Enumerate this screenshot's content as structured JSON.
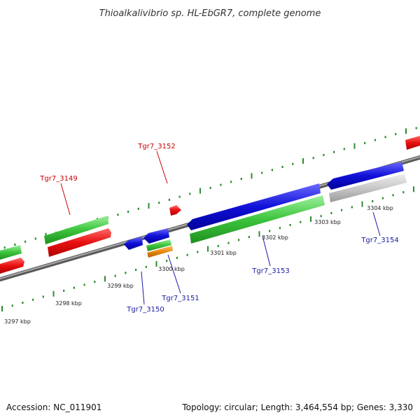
{
  "title": "Thioalkalivibrio sp. HL-EbGR7, complete genome",
  "footer": {
    "accession": "Accession: NC_011901",
    "summary": "Topology: circular; Length: 3,464,554 bp; Genes: 3,330"
  },
  "colors": {
    "backbone": "#7a7a7a",
    "tick": "#2e8b2e",
    "red": "#e81010",
    "green": "#3cc43c",
    "blue": "#1010d8",
    "orange": "#e88a10",
    "grey": "#c8c8c8",
    "label_top": "#cc0000",
    "label_bottom": "#1a1aa0"
  },
  "ticks": [
    {
      "label": "3297 kbp"
    },
    {
      "label": "3298 kbp"
    },
    {
      "label": "3299 kbp"
    },
    {
      "label": "3300 kbp"
    },
    {
      "label": "3301 kbp"
    },
    {
      "label": "3302 kbp"
    },
    {
      "label": "3303 kbp"
    },
    {
      "label": "3304 kbp"
    }
  ],
  "gene_labels": [
    {
      "text": "Tgr7_3149",
      "strand": "top"
    },
    {
      "text": "Tgr7_3152",
      "strand": "top"
    },
    {
      "text": "Tgr7_3150",
      "strand": "bottom"
    },
    {
      "text": "Tgr7_3151",
      "strand": "bottom"
    },
    {
      "text": "Tgr7_3153",
      "strand": "bottom"
    },
    {
      "text": "Tgr7_3154",
      "strand": "bottom"
    }
  ]
}
